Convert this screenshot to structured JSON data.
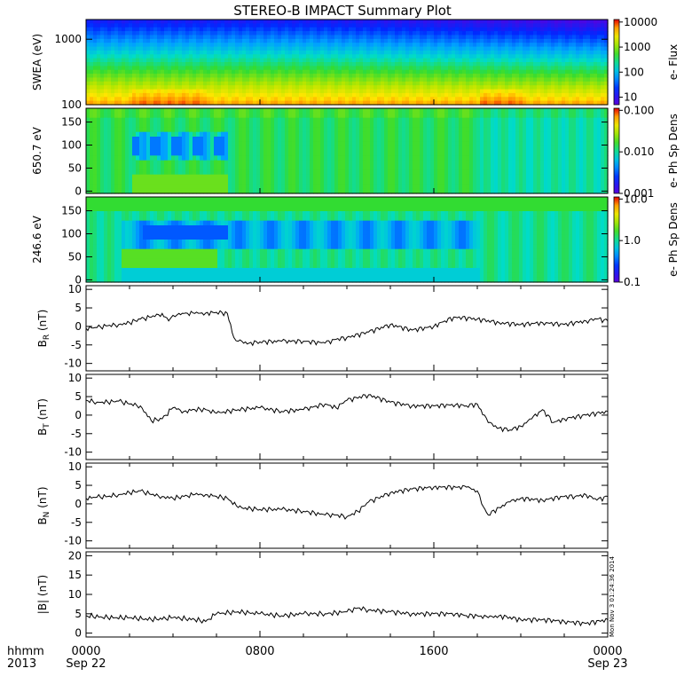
{
  "chart_data": {
    "type": "line",
    "title": "STEREO-B IMPACT Summary Plot",
    "x_tick_labels": [
      "0000",
      "0800",
      "1600",
      "0000"
    ],
    "x_tick_dates": [
      "Sep 22",
      "",
      "",
      "Sep 23"
    ],
    "x_prefix_line1": "hhmm",
    "x_prefix_line2": "2013",
    "x_range_hours": [
      0,
      24
    ],
    "timestamp": "Mon Nov  3 01:24:36 2014",
    "heatmaps": [
      {
        "ylabel": "SWEA (eV)",
        "y_scale": "log",
        "ylim": [
          100,
          2000
        ],
        "y_ticks": [
          "1000",
          "100"
        ],
        "y_tick_values": [
          1000,
          100
        ],
        "colorbar_label": "e- Flux",
        "colorbar_ticks": [
          "10000",
          "1000",
          "100",
          "10"
        ],
        "colorbar_ticks_log": [
          4,
          3,
          2,
          1
        ],
        "colorbar_range_log": [
          0.7,
          4.1
        ]
      },
      {
        "ylabel": "650.7 eV",
        "y_scale": "linear",
        "ylim": [
          -5,
          180
        ],
        "y_ticks": [
          "150",
          "100",
          "50",
          "0"
        ],
        "y_tick_values": [
          150,
          100,
          50,
          0
        ],
        "colorbar_label": "e- Ph Sp Dens",
        "colorbar_ticks": [
          "0.100",
          "0.010",
          "0.001"
        ],
        "colorbar_ticks_log": [
          -1,
          -2,
          -3
        ],
        "colorbar_range_log": [
          -3,
          -0.95
        ]
      },
      {
        "ylabel": "246.6 eV",
        "y_scale": "linear",
        "ylim": [
          -5,
          180
        ],
        "y_ticks": [
          "150",
          "100",
          "50",
          "0"
        ],
        "y_tick_values": [
          150,
          100,
          50,
          0
        ],
        "colorbar_label": "e- Ph Sp Dens",
        "colorbar_ticks": [
          "10.0",
          "1.0",
          "0.1"
        ],
        "colorbar_ticks_log": [
          1,
          0,
          -1
        ],
        "colorbar_range_log": [
          -1,
          1.05
        ]
      }
    ],
    "series": [
      {
        "ylabel_main": "B",
        "ylabel_sub": "R",
        "ylabel_unit": " (nT)",
        "ylim": [
          -12,
          11
        ],
        "y_ticks": [
          "10",
          "5",
          "0",
          "-5",
          "-10"
        ],
        "y_tick_values": [
          10,
          5,
          0,
          -5,
          -10
        ],
        "x": [
          0,
          0.5,
          1,
          1.5,
          2,
          2.5,
          3,
          3.5,
          3.8,
          4,
          4.2,
          4.5,
          5,
          5.5,
          6,
          6.5,
          6.8,
          7,
          7.5,
          8,
          9,
          10,
          11,
          11.5,
          12,
          13,
          14,
          15,
          16,
          16.5,
          17,
          18,
          19,
          20,
          21,
          22,
          23,
          23.5,
          24
        ],
        "values": [
          -0.5,
          -0.3,
          0.2,
          0.5,
          1,
          2,
          2.5,
          3.5,
          1.5,
          3,
          3.2,
          3.5,
          3.5,
          3.6,
          3.8,
          3.5,
          -3,
          -4,
          -4.5,
          -4.2,
          -4,
          -4,
          -4.5,
          -3.5,
          -3,
          -1.5,
          0.5,
          -1,
          0,
          1.5,
          2.5,
          2,
          1,
          0.5,
          1,
          0.5,
          1.5,
          2,
          1.5
        ]
      },
      {
        "ylabel_main": "B",
        "ylabel_sub": "T",
        "ylabel_unit": " (nT)",
        "ylim": [
          -12,
          11
        ],
        "y_ticks": [
          "10",
          "5",
          "0",
          "-5",
          "-10"
        ],
        "y_tick_values": [
          10,
          5,
          0,
          -5,
          -10
        ],
        "x": [
          0,
          0.5,
          1,
          1.5,
          2,
          2.5,
          3,
          3.5,
          4,
          4.5,
          5,
          5.5,
          6,
          7,
          8,
          9,
          10,
          11,
          11.5,
          12,
          13,
          14,
          15,
          16,
          17,
          17.5,
          18,
          18.5,
          19,
          19.5,
          20,
          20.5,
          21,
          21.5,
          22,
          23,
          24
        ],
        "values": [
          4,
          3.5,
          3.5,
          3.8,
          3,
          2.5,
          -1.5,
          -1,
          2,
          1,
          1.5,
          1.5,
          0.5,
          1.5,
          2,
          1,
          1.5,
          3,
          2,
          4,
          5.5,
          3.5,
          2.5,
          2.5,
          2.8,
          2.5,
          3,
          -2,
          -3.5,
          -4,
          -3,
          -1,
          1.5,
          -2,
          -1,
          0,
          1
        ]
      },
      {
        "ylabel_main": "B",
        "ylabel_sub": "N",
        "ylabel_unit": " (nT)",
        "ylim": [
          -12,
          11
        ],
        "y_ticks": [
          "10",
          "5",
          "0",
          "-5",
          "-10"
        ],
        "y_tick_values": [
          10,
          5,
          0,
          -5,
          -10
        ],
        "x": [
          0,
          0.5,
          1,
          1.5,
          2,
          2.5,
          3,
          3.5,
          4,
          4.5,
          5,
          5.5,
          6,
          6.5,
          7,
          8,
          9,
          10,
          11,
          11.5,
          12,
          12.5,
          13,
          14,
          15,
          16,
          17,
          17.5,
          18,
          18.2,
          18.5,
          19,
          19.5,
          20,
          21,
          22,
          22.5,
          23,
          23.5,
          24
        ],
        "values": [
          1.5,
          1.8,
          2,
          2.5,
          3,
          3.5,
          2.5,
          2,
          1.5,
          2,
          2.5,
          2.5,
          2,
          1.5,
          -1,
          -1.5,
          -1.5,
          -2,
          -3,
          -3,
          -3.5,
          -2,
          0.5,
          3,
          4,
          4.5,
          4.5,
          4.5,
          3.5,
          0,
          -3,
          -1,
          0.5,
          1.5,
          1,
          2,
          2,
          2.5,
          1,
          2
        ]
      },
      {
        "ylabel_main": "|B|",
        "ylabel_sub": "",
        "ylabel_unit": " (nT)",
        "ylim": [
          -1,
          21
        ],
        "y_ticks": [
          "20",
          "15",
          "10",
          "5",
          "0"
        ],
        "y_tick_values": [
          20,
          15,
          10,
          5,
          0
        ],
        "x": [
          0,
          1,
          2,
          3,
          4,
          5,
          5.5,
          6,
          7,
          8,
          9,
          10,
          11,
          12,
          12.5,
          13,
          14,
          15,
          16,
          17,
          17.5,
          18,
          18.5,
          19,
          20,
          21,
          22,
          23,
          24
        ],
        "values": [
          4.5,
          4,
          4,
          3.5,
          4,
          3.5,
          3,
          5,
          5.5,
          5,
          4.5,
          5,
          5,
          5.5,
          6.5,
          6,
          5.5,
          5,
          5,
          5,
          4.5,
          4.5,
          4,
          4.5,
          3.5,
          3.5,
          3,
          2.5,
          3.5
        ]
      }
    ]
  }
}
